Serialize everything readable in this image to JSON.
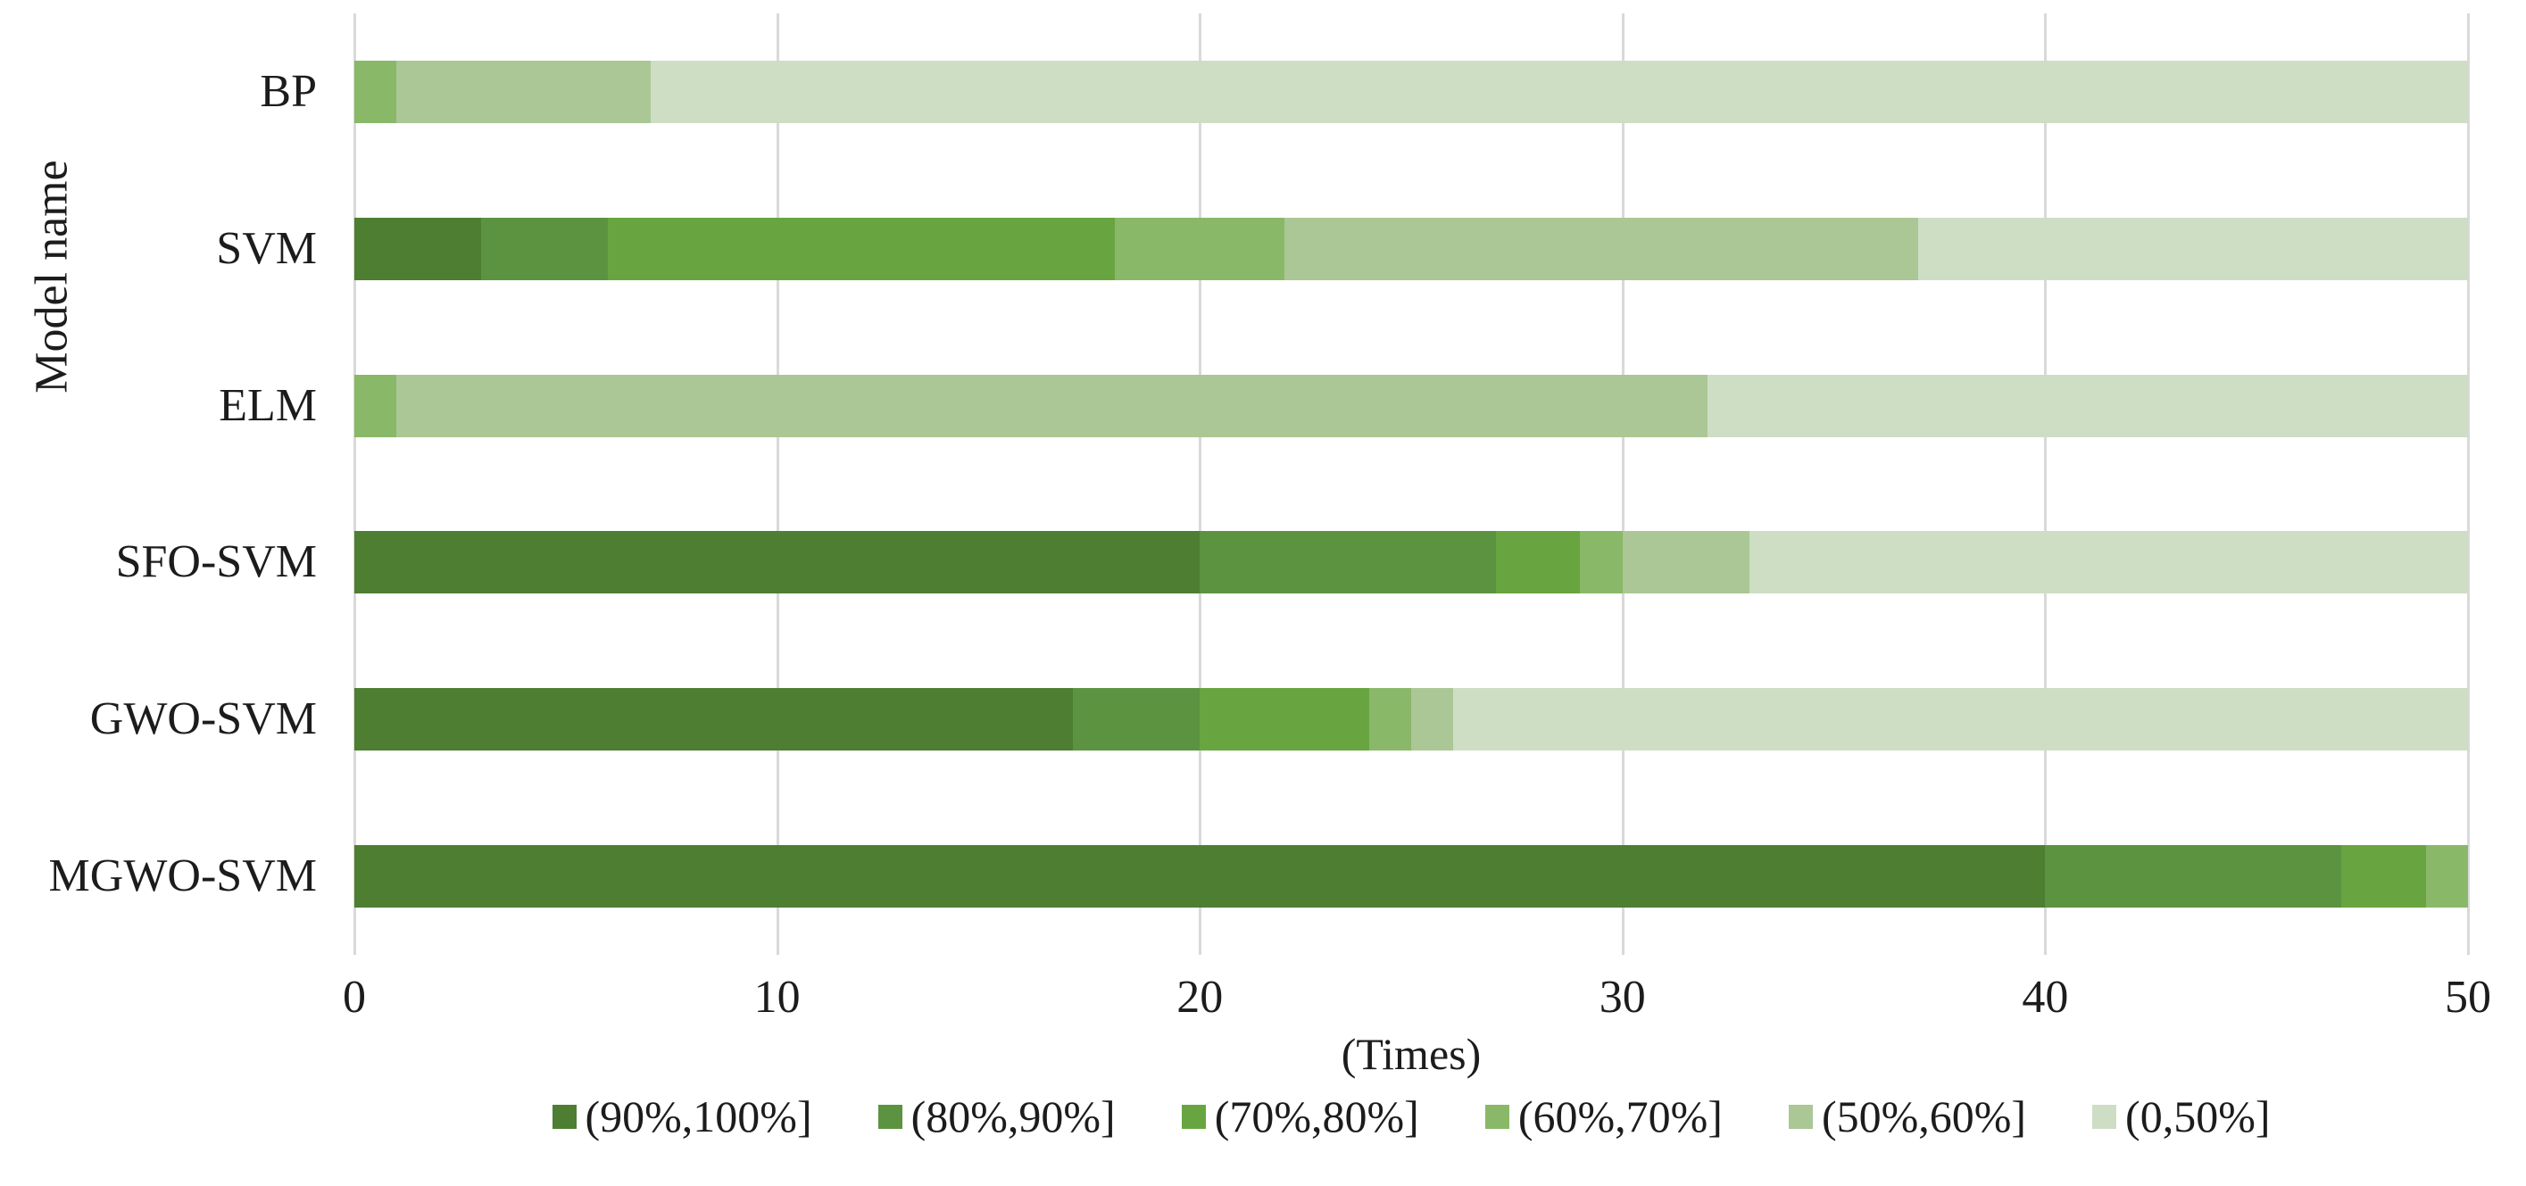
{
  "y_axis": {
    "title": "Model name"
  },
  "x_axis": {
    "title": "(Times)"
  },
  "chart_data": {
    "type": "bar",
    "orientation": "horizontal",
    "stacked": true,
    "title": "",
    "xlabel": "(Times)",
    "ylabel": "Model name",
    "xlim": [
      0,
      50
    ],
    "xticks": [
      0,
      10,
      20,
      30,
      40,
      50
    ],
    "grid": true,
    "legend_position": "bottom",
    "categories": [
      "BP",
      "SVM",
      "ELM",
      "SFO-SVM",
      "GWO-SVM",
      "MGWO-SVM"
    ],
    "series": [
      {
        "name": "(90%,100%]",
        "color": "#4d7e32",
        "values": [
          0,
          3,
          0,
          20,
          17,
          40
        ]
      },
      {
        "name": "(80%,90%]",
        "color": "#5c9340",
        "values": [
          0,
          3,
          0,
          7,
          3,
          7
        ]
      },
      {
        "name": "(70%,80%]",
        "color": "#68a540",
        "values": [
          0,
          12,
          0,
          2,
          4,
          2
        ]
      },
      {
        "name": "(60%,70%]",
        "color": "#8ab869",
        "values": [
          1,
          4,
          1,
          1,
          1,
          1
        ]
      },
      {
        "name": "(50%,60%]",
        "color": "#aac795",
        "values": [
          6,
          15,
          31,
          3,
          1,
          0
        ]
      },
      {
        "name": "(0,50%]",
        "color": "#cedec4",
        "values": [
          43,
          13,
          18,
          17,
          24,
          0
        ]
      }
    ],
    "colors": {
      "gridline": "#d9d9d9",
      "text": "#1c1c1c",
      "background": "#ffffff"
    }
  }
}
